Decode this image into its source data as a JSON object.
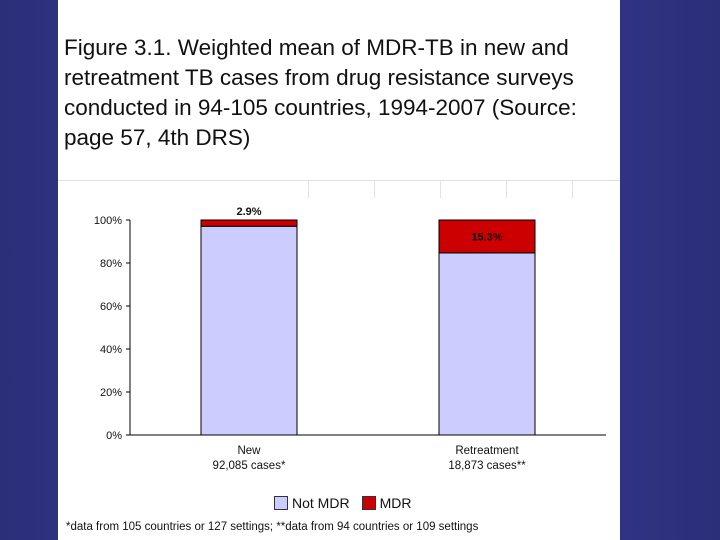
{
  "title": "Figure 3.1.  Weighted mean of MDR-TB in new and retreatment TB cases from drug resistance surveys conducted in 94-105 countries, 1994-2007  (Source:  page 57, 4th DRS)",
  "footnote": "*data from 105 countries or 127 settings; **data from 94 countries or 109 settings",
  "colors": {
    "not_mdr": "#ccccff",
    "mdr": "#cc0000"
  },
  "chart_data": {
    "type": "bar",
    "stacked": true,
    "categories": [
      {
        "label": "New",
        "sublabel": "92,085 cases*"
      },
      {
        "label": "Retreatment",
        "sublabel": "18,873 cases**"
      }
    ],
    "series": [
      {
        "name": "Not MDR",
        "values": [
          97.1,
          84.7
        ]
      },
      {
        "name": "MDR",
        "values": [
          2.9,
          15.3
        ]
      }
    ],
    "data_labels": [
      "2.9%",
      "15.3%"
    ],
    "ylim": [
      0,
      100
    ],
    "yticks": [
      "0%",
      "20%",
      "40%",
      "60%",
      "80%",
      "100%"
    ],
    "legend": "bottom"
  }
}
